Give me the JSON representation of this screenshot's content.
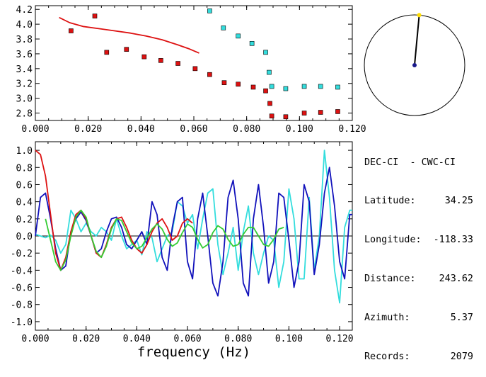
{
  "station_info": {
    "title": "DEC-CI  - CWC-CI",
    "rows": [
      {
        "label": "Latitude:",
        "value": "34.25"
      },
      {
        "label": "Longitude:",
        "value": "-118.33"
      },
      {
        "label": "Distance:",
        "value": "243.62"
      },
      {
        "label": "Azimuth:",
        "value": "5.37"
      },
      {
        "label": "Records:",
        "value": "2079"
      }
    ]
  },
  "compass": {
    "azimuth_deg": 5.37,
    "needle_color": "#000000",
    "center_color": "#1a1a8c",
    "tip_color": "#ffdd00"
  },
  "chart_data": [
    {
      "type": "scatter",
      "title": "",
      "xlabel": "",
      "ylabel": "",
      "xlim": [
        0.0,
        0.12
      ],
      "ylim": [
        2.7,
        4.25
      ],
      "xticks": [
        "0.000",
        "0.020",
        "0.040",
        "0.060",
        "0.080",
        "0.100",
        "0.120"
      ],
      "xtick_values": [
        0.0,
        0.02,
        0.04,
        0.06,
        0.08,
        0.1,
        0.12
      ],
      "yticks": [
        "2.8",
        "3.0",
        "3.2",
        "3.4",
        "3.6",
        "3.8",
        "4.0",
        "4.2"
      ],
      "ytick_values": [
        2.8,
        3.0,
        3.2,
        3.4,
        3.6,
        3.8,
        4.0,
        4.2
      ],
      "grid": false,
      "series": [
        {
          "kind": "line",
          "color": "#dd1111",
          "x": [
            0.009,
            0.013,
            0.018,
            0.024,
            0.03,
            0.036,
            0.042,
            0.048,
            0.054,
            0.058,
            0.062
          ],
          "y": [
            4.09,
            4.02,
            3.97,
            3.94,
            3.91,
            3.88,
            3.84,
            3.79,
            3.72,
            3.67,
            3.61
          ]
        },
        {
          "kind": "points",
          "color": "#dd1111",
          "x": [
            0.0135,
            0.0225,
            0.027,
            0.0345,
            0.0412,
            0.0475,
            0.054,
            0.0605,
            0.066,
            0.0715,
            0.0768,
            0.0825,
            0.0872,
            0.0888,
            0.0895,
            0.0948,
            0.1018,
            0.108,
            0.1145
          ],
          "y": [
            3.91,
            4.11,
            3.62,
            3.66,
            3.56,
            3.51,
            3.47,
            3.4,
            3.32,
            3.21,
            3.19,
            3.15,
            3.1,
            2.93,
            2.76,
            2.75,
            2.8,
            2.81,
            2.82
          ]
        },
        {
          "kind": "points",
          "color": "#33dddd",
          "x": [
            0.066,
            0.0712,
            0.0768,
            0.082,
            0.0872,
            0.0885,
            0.0895,
            0.0948,
            0.1018,
            0.108,
            0.1145
          ],
          "y": [
            4.18,
            3.95,
            3.84,
            3.74,
            3.62,
            3.35,
            3.16,
            3.13,
            3.16,
            3.16,
            3.15
          ]
        }
      ]
    },
    {
      "type": "line",
      "title": "",
      "xlabel": "frequency (Hz)",
      "ylabel": "",
      "xlim": [
        0.0,
        0.125
      ],
      "ylim": [
        -1.1,
        1.1
      ],
      "xticks": [
        "0.000",
        "0.020",
        "0.040",
        "0.060",
        "0.080",
        "0.100",
        "0.120"
      ],
      "xtick_values": [
        0.0,
        0.02,
        0.04,
        0.06,
        0.08,
        0.1,
        0.12
      ],
      "yticks": [
        "1.0",
        "0.8",
        "0.6",
        "0.4",
        "0.2",
        "0.0",
        "-0.2",
        "-0.4",
        "-0.6",
        "-0.8",
        "-1.0"
      ],
      "ytick_values": [
        1.0,
        0.8,
        0.6,
        0.4,
        0.2,
        0.0,
        -0.2,
        -0.4,
        -0.6,
        -0.8,
        -1.0
      ],
      "zero_line": true,
      "grid": false,
      "series": [
        {
          "color": "#33dddd",
          "x": [
            0.0,
            0.002,
            0.004,
            0.006,
            0.008,
            0.01,
            0.012,
            0.014,
            0.016,
            0.018,
            0.02,
            0.022,
            0.024,
            0.026,
            0.028,
            0.03,
            0.032,
            0.034,
            0.036,
            0.038,
            0.04,
            0.042,
            0.044,
            0.046,
            0.048,
            0.05,
            0.052,
            0.054,
            0.056,
            0.058,
            0.06,
            0.062,
            0.064,
            0.066,
            0.068,
            0.07,
            0.072,
            0.074,
            0.076,
            0.078,
            0.08,
            0.082,
            0.084,
            0.086,
            0.088,
            0.09,
            0.092,
            0.094,
            0.096,
            0.098,
            0.1,
            0.102,
            0.104,
            0.106,
            0.108,
            0.11,
            0.112,
            0.114,
            0.116,
            0.118,
            0.12,
            0.122,
            0.124,
            0.125
          ],
          "y": [
            0.02,
            0.0,
            -0.02,
            0.01,
            -0.05,
            -0.2,
            -0.1,
            0.3,
            0.2,
            0.05,
            0.15,
            0.05,
            0.0,
            0.1,
            0.05,
            -0.05,
            0.2,
            0.0,
            -0.15,
            -0.1,
            -0.05,
            -0.22,
            0.05,
            -0.02,
            -0.3,
            -0.15,
            0.0,
            0.05,
            0.4,
            0.35,
            0.15,
            0.25,
            -0.15,
            0.2,
            0.5,
            0.55,
            -0.1,
            -0.45,
            -0.2,
            0.1,
            -0.4,
            0.05,
            0.35,
            -0.2,
            -0.45,
            -0.2,
            0.0,
            -0.05,
            -0.6,
            -0.3,
            0.55,
            0.2,
            -0.5,
            -0.5,
            0.45,
            -0.4,
            0.0,
            1.0,
            0.45,
            -0.4,
            -0.78,
            0.1,
            0.3,
            0.3
          ]
        },
        {
          "color": "#1111bb",
          "x": [
            0.0,
            0.002,
            0.004,
            0.006,
            0.008,
            0.01,
            0.012,
            0.014,
            0.016,
            0.018,
            0.02,
            0.022,
            0.024,
            0.026,
            0.028,
            0.03,
            0.032,
            0.034,
            0.036,
            0.038,
            0.04,
            0.042,
            0.044,
            0.046,
            0.048,
            0.05,
            0.052,
            0.054,
            0.056,
            0.058,
            0.06,
            0.062,
            0.064,
            0.066,
            0.068,
            0.07,
            0.072,
            0.074,
            0.076,
            0.078,
            0.08,
            0.082,
            0.084,
            0.086,
            0.088,
            0.09,
            0.092,
            0.094,
            0.096,
            0.098,
            0.1,
            0.102,
            0.104,
            0.106,
            0.108,
            0.11,
            0.112,
            0.114,
            0.116,
            0.118,
            0.12,
            0.122,
            0.124,
            0.125
          ],
          "y": [
            0.0,
            0.45,
            0.5,
            0.2,
            -0.15,
            -0.4,
            -0.35,
            0.05,
            0.2,
            0.28,
            0.18,
            0.0,
            -0.2,
            -0.15,
            0.05,
            0.2,
            0.22,
            0.1,
            -0.1,
            -0.15,
            -0.05,
            0.05,
            -0.1,
            0.4,
            0.25,
            -0.25,
            -0.4,
            0.1,
            0.4,
            0.45,
            -0.3,
            -0.5,
            0.2,
            0.5,
            0.0,
            -0.55,
            -0.7,
            -0.3,
            0.45,
            0.65,
            0.2,
            -0.55,
            -0.7,
            0.2,
            0.6,
            0.1,
            -0.55,
            -0.3,
            0.5,
            0.45,
            -0.05,
            -0.6,
            -0.3,
            0.6,
            0.4,
            -0.45,
            -0.1,
            0.5,
            0.8,
            0.35,
            -0.3,
            -0.5,
            0.25,
            0.25
          ]
        },
        {
          "color": "#dd1111",
          "x": [
            0.0,
            0.002,
            0.004,
            0.006,
            0.008,
            0.01,
            0.012,
            0.014,
            0.016,
            0.018,
            0.02,
            0.022,
            0.024,
            0.026,
            0.028,
            0.03,
            0.032,
            0.034,
            0.036,
            0.038,
            0.04,
            0.042,
            0.044,
            0.046,
            0.048,
            0.05,
            0.052,
            0.054,
            0.056,
            0.058,
            0.06,
            0.062
          ],
          "y": [
            1.0,
            0.95,
            0.7,
            0.25,
            -0.2,
            -0.4,
            -0.25,
            0.05,
            0.25,
            0.3,
            0.2,
            0.0,
            -0.2,
            -0.25,
            -0.1,
            0.1,
            0.2,
            0.22,
            0.1,
            -0.05,
            -0.15,
            -0.2,
            -0.1,
            0.05,
            0.15,
            0.2,
            0.1,
            -0.05,
            0.0,
            0.15,
            0.2,
            0.15
          ]
        },
        {
          "color": "#33cc33",
          "x": [
            0.004,
            0.006,
            0.008,
            0.01,
            0.012,
            0.014,
            0.016,
            0.018,
            0.02,
            0.022,
            0.024,
            0.026,
            0.028,
            0.03,
            0.032,
            0.034,
            0.036,
            0.038,
            0.04,
            0.042,
            0.044,
            0.046,
            0.048,
            0.05,
            0.052,
            0.054,
            0.056,
            0.058,
            0.06,
            0.062,
            0.064,
            0.066,
            0.068,
            0.07,
            0.072,
            0.074,
            0.076,
            0.078,
            0.08,
            0.082,
            0.084,
            0.086,
            0.088,
            0.09,
            0.092,
            0.094,
            0.096,
            0.098
          ],
          "y": [
            0.2,
            -0.05,
            -0.3,
            -0.4,
            -0.28,
            0.0,
            0.22,
            0.3,
            0.22,
            0.0,
            -0.18,
            -0.25,
            -0.12,
            0.08,
            0.2,
            0.18,
            0.05,
            -0.08,
            -0.15,
            -0.12,
            -0.02,
            0.08,
            0.14,
            0.08,
            -0.04,
            -0.12,
            -0.08,
            0.04,
            0.14,
            0.1,
            -0.04,
            -0.14,
            -0.1,
            0.04,
            0.12,
            0.08,
            -0.04,
            -0.12,
            -0.1,
            0.02,
            0.1,
            0.1,
            0.0,
            -0.1,
            -0.12,
            -0.04,
            0.08,
            0.1
          ]
        }
      ]
    }
  ]
}
